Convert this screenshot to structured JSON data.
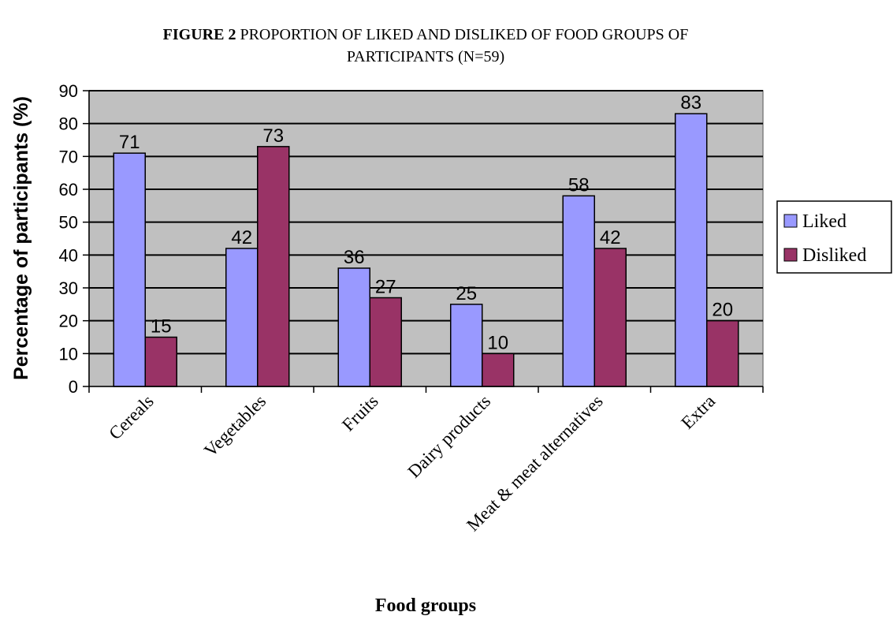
{
  "chart_data": {
    "type": "bar",
    "title_prefix": "FIGURE 2",
    "title_line1": "PROPORTION OF LIKED AND DISLIKED OF FOOD GROUPS OF",
    "title_line2": "PARTICIPANTS (N=59)",
    "xlabel": "Food groups",
    "ylabel": "Percentage of participants (%)",
    "ylim": [
      0,
      90
    ],
    "yticks": [
      "0",
      "10",
      "20",
      "30",
      "40",
      "50",
      "60",
      "70",
      "80",
      "90"
    ],
    "grid": true,
    "legend_position": "right",
    "categories": [
      "Cereals",
      "Vegetables",
      "Fruits",
      "Dairy products",
      "Meat & meat alternatives",
      "Extra"
    ],
    "series": [
      {
        "name": "Liked",
        "color": "#9999ff",
        "values": [
          71,
          42,
          36,
          25,
          58,
          83
        ]
      },
      {
        "name": "Disliked",
        "color": "#993366",
        "values": [
          15,
          73,
          27,
          10,
          42,
          20
        ]
      }
    ],
    "plot_background": "#c0c0c0"
  }
}
